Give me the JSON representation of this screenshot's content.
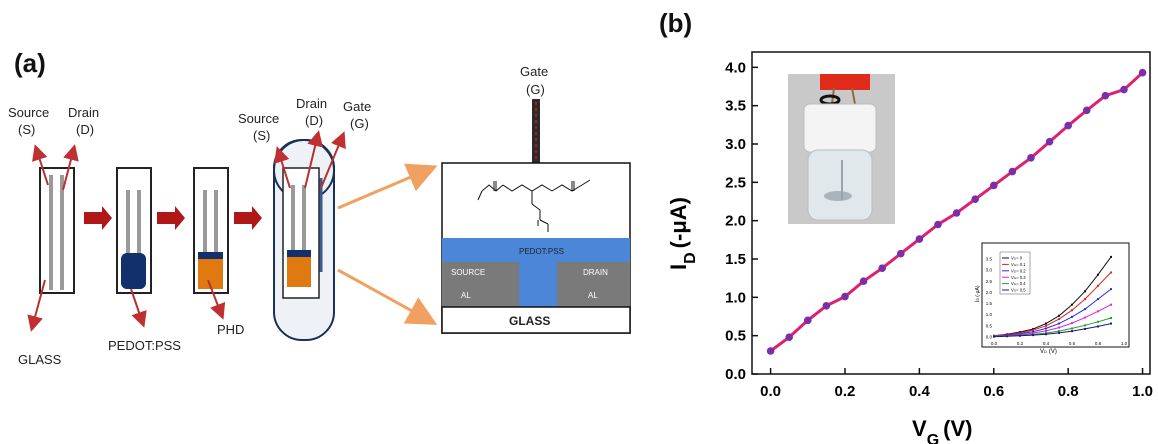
{
  "panel_a": {
    "label": "(a)",
    "step1": {
      "source": "Source",
      "source_abbr": "(S)",
      "drain": "Drain",
      "drain_abbr": "(D)",
      "glass": "GLASS"
    },
    "step2": {
      "pedot": "PEDOT:PSS"
    },
    "step3": {
      "phd": "PHD"
    },
    "step4": {
      "source": "Source",
      "source_abbr": "(S)",
      "drain": "Drain",
      "drain_abbr": "(D)",
      "gate": "Gate",
      "gate_abbr": "(G)"
    },
    "cross_section": {
      "gate": "Gate",
      "gate_abbr": "(G)",
      "pedot": "PEDOT:PSS",
      "source": "SOURCE",
      "source_metal": "AL",
      "drain": "DRAIN",
      "drain_metal": "AL",
      "glass": "GLASS"
    },
    "colors": {
      "arrow_red": "#b01818",
      "arrow_orange": "#f0a060",
      "pedot_blue": "#4b86d9",
      "electrode_gray": "#7a7a7a",
      "phd_orange": "#e07a10",
      "pedot_dark": "#12306b"
    }
  },
  "panel_b": {
    "label": "(b)",
    "chart_data": [
      {
        "type": "line",
        "xlabel": "V",
        "xlabel_sub": "G",
        "xlabel_unit": "(V)",
        "ylabel": "I",
        "ylabel_sub": "D",
        "ylabel_unit": "(-μA)",
        "xlim": [
          -0.05,
          1.02
        ],
        "ylim": [
          0.0,
          4.2
        ],
        "xticks": [
          "0.0",
          "0.2",
          "0.4",
          "0.6",
          "0.8",
          "1.0"
        ],
        "yticks": [
          "0.0",
          "0.5",
          "1.0",
          "1.5",
          "2.0",
          "2.5",
          "3.0",
          "3.5",
          "4.0"
        ],
        "series": [
          {
            "color": "#e0206e",
            "marker_color": "#7a2fa8",
            "x": [
              0.0,
              0.05,
              0.1,
              0.15,
              0.2,
              0.25,
              0.3,
              0.35,
              0.4,
              0.45,
              0.5,
              0.55,
              0.6,
              0.65,
              0.7,
              0.75,
              0.8,
              0.85,
              0.9,
              0.95,
              1.0
            ],
            "y": [
              0.3,
              0.48,
              0.7,
              0.89,
              1.01,
              1.21,
              1.38,
              1.57,
              1.76,
              1.95,
              2.1,
              2.28,
              2.46,
              2.64,
              2.82,
              3.03,
              3.24,
              3.44,
              3.63,
              3.71,
              3.93
            ]
          }
        ]
      },
      {
        "type": "line",
        "xlabel": "V",
        "xlabel_sub": "D",
        "xlabel_unit": "(V)",
        "ylabel": "I",
        "ylabel_sub": "D",
        "ylabel_unit": "(-μA)",
        "xlim": [
          0.0,
          1.0
        ],
        "ylim": [
          -0.05,
          4.0
        ],
        "xticks": [
          "0.0",
          "0.2",
          "0.4",
          "0.6",
          "0.8",
          "1.0"
        ],
        "yticks": [
          "0.0",
          "0.5",
          "1.0",
          "1.5",
          "2.0",
          "2.5",
          "3.0",
          "3.5"
        ],
        "series": [
          {
            "name": "V",
            "name_sub": "G",
            "name_value": "= 0",
            "color": "#111111",
            "x": [
              0.0,
              0.1,
              0.2,
              0.3,
              0.4,
              0.5,
              0.6,
              0.7,
              0.8,
              0.9
            ],
            "y": [
              0.05,
              0.12,
              0.22,
              0.35,
              0.6,
              0.95,
              1.45,
              2.05,
              2.8,
              3.6
            ]
          },
          {
            "name": "V",
            "name_sub": "G",
            "name_value": "= 0.1",
            "color": "#e02020",
            "x": [
              0.0,
              0.1,
              0.2,
              0.3,
              0.4,
              0.5,
              0.6,
              0.7,
              0.8,
              0.9
            ],
            "y": [
              0.05,
              0.1,
              0.18,
              0.3,
              0.5,
              0.8,
              1.2,
              1.7,
              2.3,
              2.9
            ]
          },
          {
            "name": "V",
            "name_sub": "G",
            "name_value": "= 0.2",
            "color": "#2030e0",
            "x": [
              0.0,
              0.1,
              0.2,
              0.3,
              0.4,
              0.5,
              0.6,
              0.7,
              0.8,
              0.9
            ],
            "y": [
              0.04,
              0.08,
              0.14,
              0.23,
              0.38,
              0.6,
              0.9,
              1.25,
              1.7,
              2.15
            ]
          },
          {
            "name": "V",
            "name_sub": "G",
            "name_value": "= 0.3",
            "color": "#e020e0",
            "x": [
              0.0,
              0.1,
              0.2,
              0.3,
              0.4,
              0.5,
              0.6,
              0.7,
              0.8,
              0.9
            ],
            "y": [
              0.03,
              0.06,
              0.1,
              0.17,
              0.27,
              0.42,
              0.62,
              0.87,
              1.15,
              1.45
            ]
          },
          {
            "name": "V",
            "name_sub": "G",
            "name_value": "= 0.4",
            "color": "#20a020",
            "x": [
              0.0,
              0.1,
              0.2,
              0.3,
              0.4,
              0.5,
              0.6,
              0.7,
              0.8,
              0.9
            ],
            "y": [
              0.02,
              0.04,
              0.07,
              0.11,
              0.17,
              0.26,
              0.38,
              0.52,
              0.68,
              0.85
            ]
          },
          {
            "name": "V",
            "name_sub": "G",
            "name_value": "= 0.5",
            "color": "#1a1a80",
            "x": [
              0.0,
              0.1,
              0.2,
              0.3,
              0.4,
              0.5,
              0.6,
              0.7,
              0.8,
              0.9
            ],
            "y": [
              0.01,
              0.03,
              0.05,
              0.08,
              0.12,
              0.18,
              0.26,
              0.36,
              0.47,
              0.6
            ]
          }
        ]
      }
    ],
    "photo": {
      "bg": "#c8c8c8",
      "cap_color": "#e02a1a",
      "body_color": "#f2f2f2",
      "vial_color": "#dfe6ea"
    }
  }
}
